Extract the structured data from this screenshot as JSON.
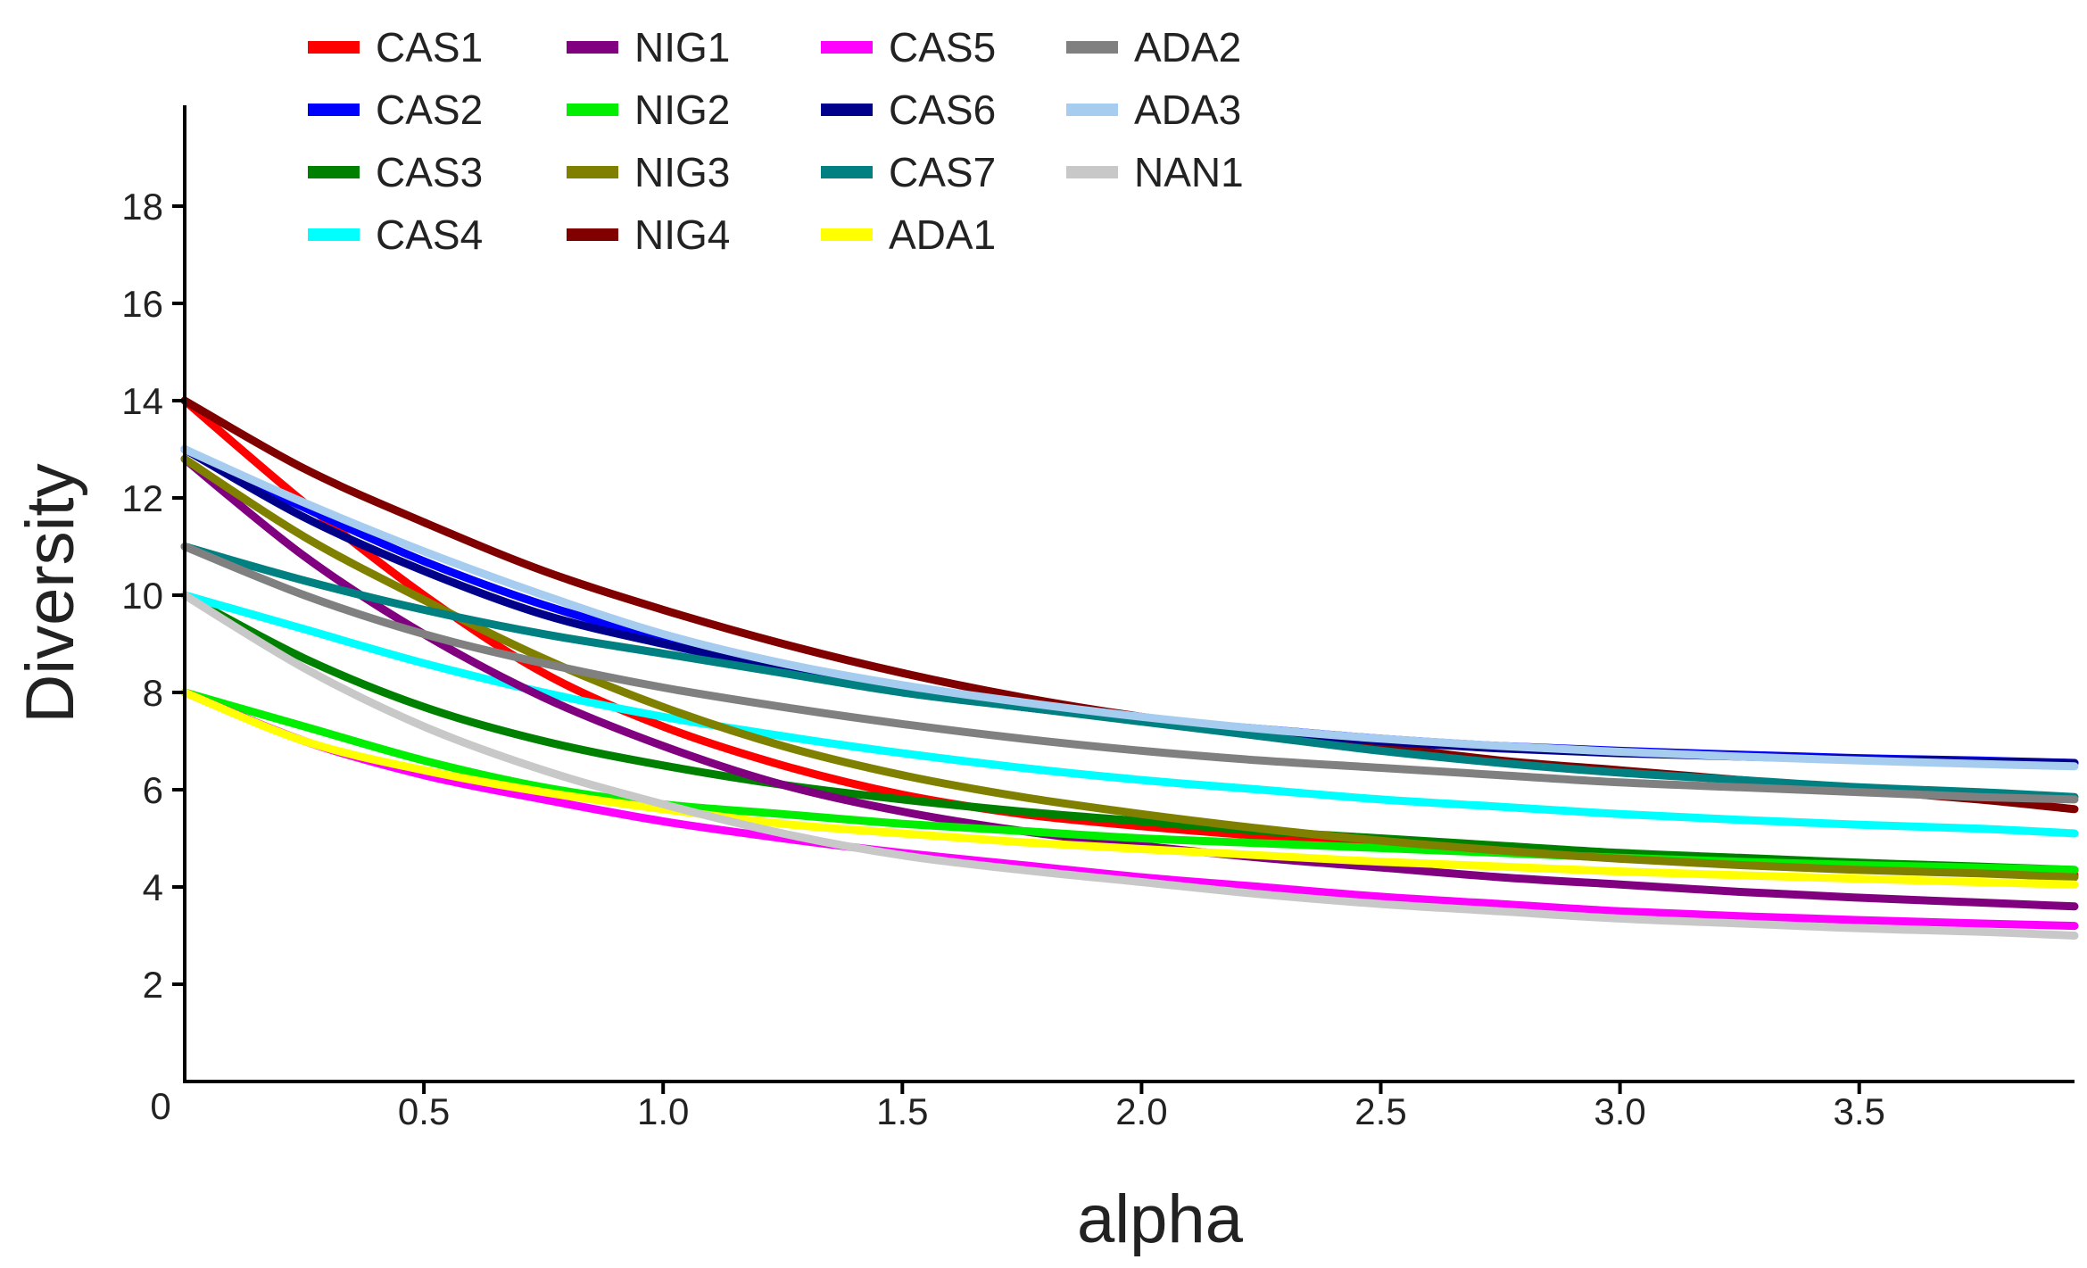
{
  "chart_data": {
    "type": "line",
    "title": "",
    "xlabel": "alpha",
    "ylabel": "Diversity",
    "xlim": [
      0,
      3.95
    ],
    "ylim": [
      0,
      20
    ],
    "x_ticks": [
      "0.5",
      "1.0",
      "1.5",
      "2.0",
      "2.5",
      "3.0",
      "3.5"
    ],
    "y_ticks": [
      "2",
      "4",
      "6",
      "8",
      "10",
      "12",
      "14",
      "16",
      "18"
    ],
    "origin_label": "0",
    "grid": false,
    "legend_position": "top-left",
    "x": [
      0,
      0.25,
      0.5,
      0.75,
      1.0,
      1.25,
      1.5,
      1.75,
      2.0,
      2.25,
      2.5,
      2.75,
      3.0,
      3.25,
      3.5,
      3.75,
      3.95
    ],
    "series": [
      {
        "name": "CAS1",
        "color": "#ff0000",
        "values": [
          14.0,
          11.9,
          10.0,
          8.4,
          7.3,
          6.5,
          5.9,
          5.5,
          5.25,
          5.05,
          4.9,
          4.75,
          4.6,
          4.5,
          4.4,
          4.3,
          4.25
        ]
      },
      {
        "name": "CAS2",
        "color": "#0000ff",
        "values": [
          13.0,
          11.8,
          10.7,
          9.8,
          9.1,
          8.5,
          8.05,
          7.7,
          7.45,
          7.25,
          7.05,
          6.9,
          6.8,
          6.72,
          6.65,
          6.6,
          6.55
        ]
      },
      {
        "name": "CAS3",
        "color": "#008000",
        "values": [
          10.0,
          8.7,
          7.7,
          7.0,
          6.5,
          6.1,
          5.8,
          5.55,
          5.35,
          5.15,
          5.0,
          4.85,
          4.7,
          4.6,
          4.5,
          4.42,
          4.35
        ]
      },
      {
        "name": "CAS4",
        "color": "#00ffff",
        "values": [
          10.0,
          9.3,
          8.6,
          8.0,
          7.5,
          7.1,
          6.75,
          6.45,
          6.2,
          6.0,
          5.8,
          5.65,
          5.5,
          5.38,
          5.28,
          5.2,
          5.1
        ]
      },
      {
        "name": "NIG1",
        "color": "#800080",
        "values": [
          12.8,
          10.8,
          9.2,
          7.9,
          6.9,
          6.1,
          5.55,
          5.15,
          4.85,
          4.6,
          4.4,
          4.2,
          4.05,
          3.9,
          3.78,
          3.68,
          3.6
        ]
      },
      {
        "name": "NIG2",
        "color": "#00ee00",
        "values": [
          8.0,
          7.3,
          6.6,
          6.05,
          5.7,
          5.5,
          5.3,
          5.15,
          5.0,
          4.9,
          4.8,
          4.7,
          4.6,
          4.52,
          4.45,
          4.4,
          4.35
        ]
      },
      {
        "name": "NIG3",
        "color": "#808000",
        "values": [
          12.8,
          11.2,
          9.9,
          8.7,
          7.7,
          6.9,
          6.3,
          5.85,
          5.5,
          5.2,
          4.95,
          4.75,
          4.58,
          4.45,
          4.35,
          4.28,
          4.2
        ]
      },
      {
        "name": "NIG4",
        "color": "#800000",
        "values": [
          14.0,
          12.6,
          11.5,
          10.5,
          9.7,
          9.0,
          8.4,
          7.9,
          7.5,
          7.2,
          6.9,
          6.6,
          6.4,
          6.2,
          6.0,
          5.8,
          5.6
        ]
      },
      {
        "name": "CAS5",
        "color": "#ff00ff",
        "values": [
          8.0,
          7.0,
          6.3,
          5.8,
          5.35,
          5.0,
          4.7,
          4.45,
          4.2,
          4.0,
          3.8,
          3.65,
          3.5,
          3.4,
          3.32,
          3.25,
          3.2
        ]
      },
      {
        "name": "CAS6",
        "color": "#00008b",
        "values": [
          13.0,
          11.6,
          10.5,
          9.6,
          9.0,
          8.5,
          8.1,
          7.75,
          7.45,
          7.2,
          7.0,
          6.85,
          6.75,
          6.68,
          6.62,
          6.58,
          6.55
        ]
      },
      {
        "name": "CAS7",
        "color": "#008080",
        "values": [
          11.0,
          10.3,
          9.7,
          9.2,
          8.8,
          8.4,
          8.0,
          7.7,
          7.4,
          7.1,
          6.8,
          6.55,
          6.35,
          6.2,
          6.05,
          5.95,
          5.85
        ]
      },
      {
        "name": "ADA1",
        "color": "#ffff00",
        "values": [
          8.0,
          7.0,
          6.4,
          5.95,
          5.6,
          5.3,
          5.1,
          4.92,
          4.78,
          4.65,
          4.52,
          4.42,
          4.32,
          4.24,
          4.17,
          4.1,
          4.05
        ]
      },
      {
        "name": "ADA2",
        "color": "#808080",
        "values": [
          11.0,
          10.0,
          9.2,
          8.6,
          8.1,
          7.7,
          7.35,
          7.05,
          6.8,
          6.6,
          6.45,
          6.3,
          6.15,
          6.05,
          5.95,
          5.85,
          5.8
        ]
      },
      {
        "name": "ADA3",
        "color": "#a6cdf0",
        "values": [
          13.0,
          11.9,
          10.9,
          10.0,
          9.2,
          8.6,
          8.15,
          7.8,
          7.5,
          7.25,
          7.05,
          6.9,
          6.78,
          6.68,
          6.6,
          6.53,
          6.48
        ]
      },
      {
        "name": "NAN1",
        "color": "#c8c8c8",
        "values": [
          10.0,
          8.5,
          7.3,
          6.4,
          5.7,
          5.1,
          4.65,
          4.35,
          4.1,
          3.85,
          3.65,
          3.5,
          3.35,
          3.25,
          3.15,
          3.08,
          3.0
        ]
      }
    ]
  }
}
